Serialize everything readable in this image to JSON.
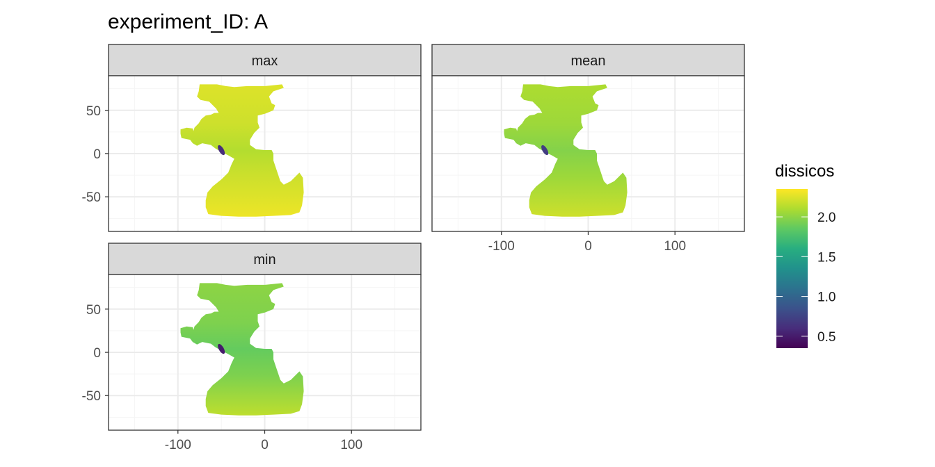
{
  "chart_data": {
    "type": "heatmap",
    "title": "experiment_ID: A",
    "xlabel": "",
    "ylabel": "",
    "facets": [
      {
        "label": "max",
        "row": 0,
        "col": 0,
        "show_x_ticks": false,
        "show_y_ticks": true
      },
      {
        "label": "mean",
        "row": 0,
        "col": 1,
        "show_x_ticks": true,
        "show_y_ticks": false
      },
      {
        "label": "min",
        "row": 1,
        "col": 0,
        "show_x_ticks": true,
        "show_y_ticks": true
      }
    ],
    "xlim": [
      -180,
      180
    ],
    "ylim": [
      -90,
      90
    ],
    "x_ticks": [
      -100,
      0,
      100
    ],
    "x_tick_labels": [
      "-100",
      "0",
      "100"
    ],
    "y_ticks": [
      50,
      0,
      -50
    ],
    "y_tick_labels": [
      "50",
      "0",
      "-50"
    ],
    "grid": true,
    "legend": {
      "title": "dissicos",
      "position": "right",
      "colormap": "viridis",
      "range": [
        0.35,
        2.35
      ],
      "breaks": [
        0.5,
        1.0,
        1.5,
        2.0
      ],
      "break_labels": [
        "0.5",
        "1.0",
        "1.5",
        "2.0"
      ]
    },
    "field_summary": {
      "max": {
        "typical": 2.2,
        "southern_ocean": 2.3,
        "coastal_min": 0.6
      },
      "mean": {
        "typical": 2.05,
        "southern_ocean": 2.2,
        "coastal_min": 0.7
      },
      "min": {
        "typical": 1.95,
        "southern_ocean": 2.15,
        "coastal_min": 0.5
      }
    },
    "colors": {
      "strip_fill": "#d9d9d9",
      "panel_border": "#333333",
      "grid_major": "#ebebeb",
      "grid_minor": "#f5f5f5"
    }
  }
}
